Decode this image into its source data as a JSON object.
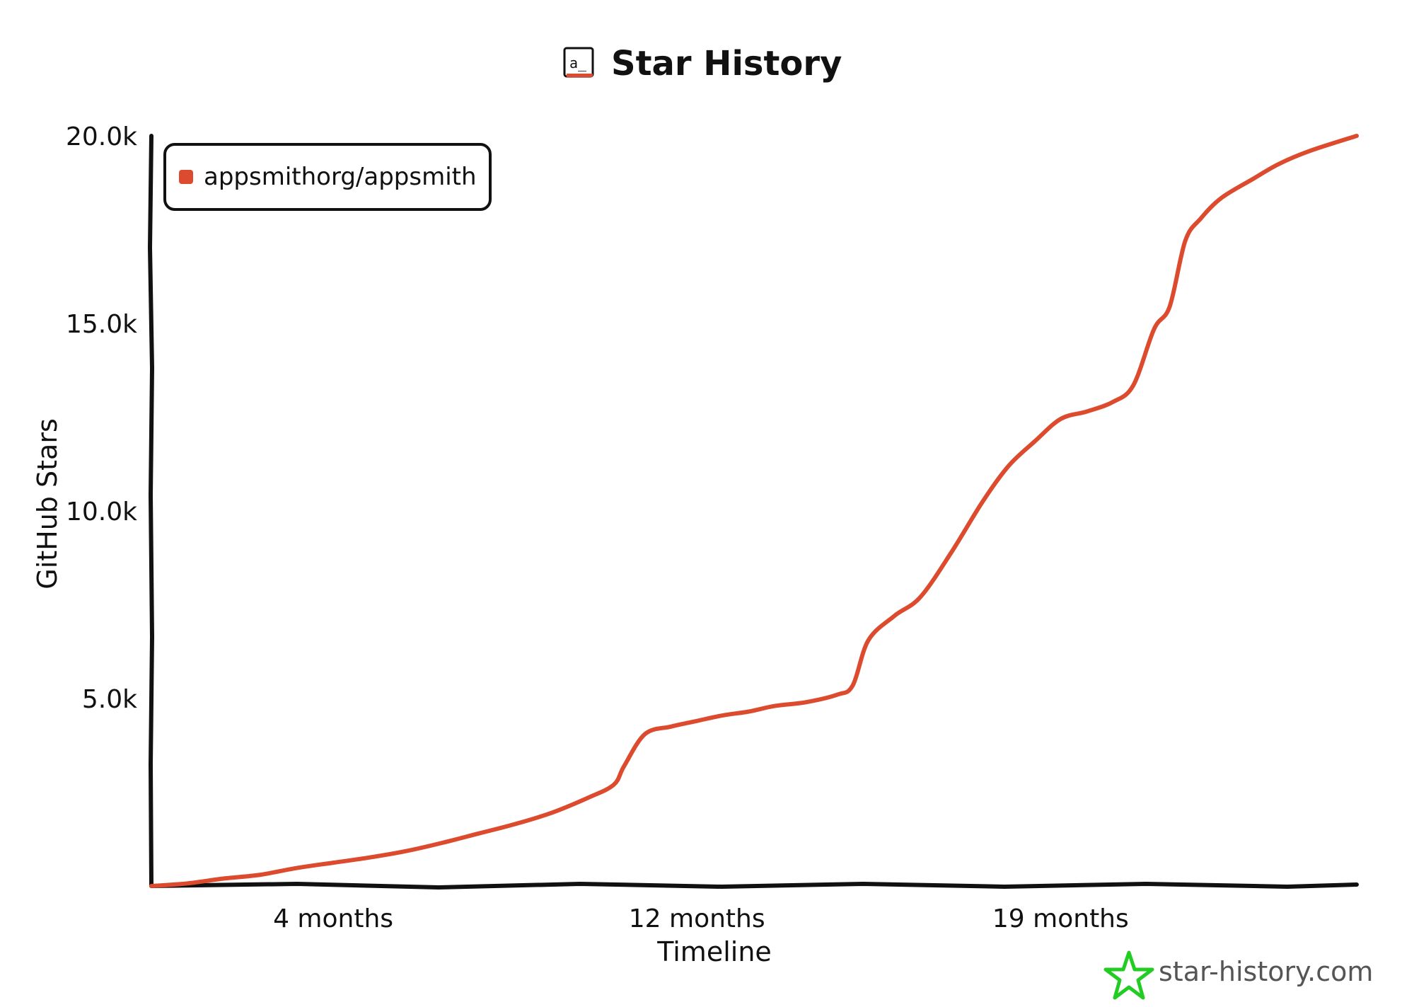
{
  "header": {
    "logo_text": "a_",
    "title": "Star History"
  },
  "legend": {
    "label": "appsmithorg/appsmith"
  },
  "watermark": {
    "text": "star-history.com"
  },
  "colors": {
    "series": "#dd4b2e",
    "axis": "#111111",
    "brand_star": "#22cc22"
  },
  "chart_data": {
    "type": "line",
    "title": "Star History",
    "xlabel": "Timeline",
    "ylabel": "GitHub Stars",
    "xlim": [
      0,
      23.2
    ],
    "ylim": [
      0,
      20000
    ],
    "x_ticks": [
      {
        "value": 3.5,
        "label": "4 months"
      },
      {
        "value": 10.5,
        "label": "12 months"
      },
      {
        "value": 17.5,
        "label": "19 months"
      }
    ],
    "y_ticks": [
      {
        "value": 5000,
        "label": "5.0k"
      },
      {
        "value": 10000,
        "label": "10.0k"
      },
      {
        "value": 15000,
        "label": "15.0k"
      },
      {
        "value": 20000,
        "label": "20.0k"
      }
    ],
    "legend_position": "top-left",
    "grid": false,
    "series": [
      {
        "name": "appsmithorg/appsmith",
        "x": [
          0,
          0.7,
          1.4,
          2.1,
          2.8,
          3.5,
          4.2,
          4.9,
          5.6,
          6.3,
          7.0,
          7.7,
          8.4,
          8.9,
          9.1,
          9.5,
          10.0,
          10.5,
          11.0,
          11.5,
          12.0,
          12.6,
          13.2,
          13.5,
          13.8,
          14.3,
          14.8,
          15.4,
          16.0,
          16.5,
          17.0,
          17.5,
          18.0,
          18.5,
          18.9,
          19.3,
          19.6,
          19.9,
          20.2,
          20.6,
          21.2,
          21.7,
          22.3,
          23.2
        ],
        "y": [
          0,
          70,
          200,
          300,
          480,
          620,
          760,
          930,
          1150,
          1400,
          1650,
          1950,
          2350,
          2700,
          3200,
          4050,
          4250,
          4400,
          4550,
          4650,
          4800,
          4900,
          5100,
          5350,
          6550,
          7200,
          7700,
          8900,
          10250,
          11200,
          11850,
          12450,
          12650,
          12900,
          13350,
          14850,
          15450,
          17200,
          17800,
          18350,
          18850,
          19250,
          19600,
          20000
        ]
      }
    ]
  }
}
